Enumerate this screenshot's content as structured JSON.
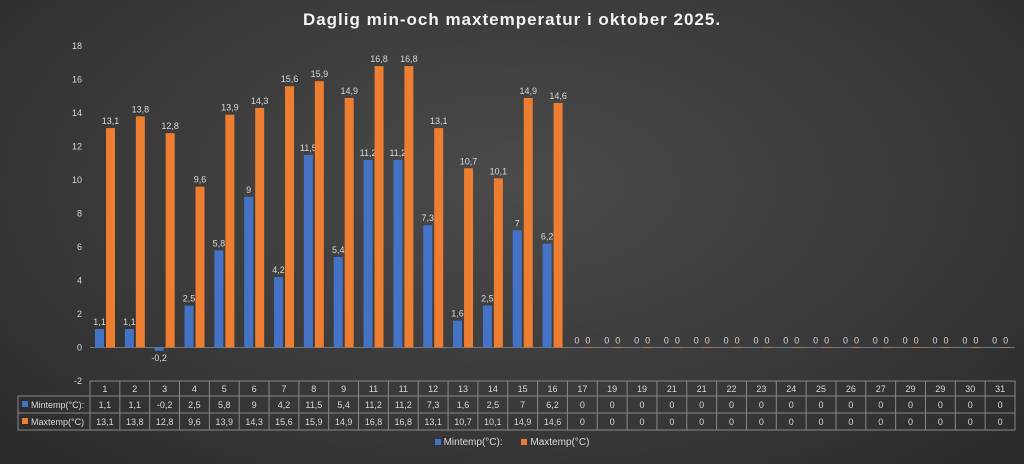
{
  "chart_data": {
    "type": "bar",
    "title": "Daglig min-och maxtemperatur i oktober 2025.",
    "categories": [
      "1",
      "2",
      "3",
      "4",
      "5",
      "6",
      "7",
      "8",
      "9",
      "11",
      "11",
      "12",
      "13",
      "14",
      "15",
      "16",
      "17",
      "19",
      "19",
      "21",
      "21",
      "22",
      "23",
      "24",
      "25",
      "26",
      "27",
      "29",
      "29",
      "30",
      "31"
    ],
    "series": [
      {
        "name": "Mintemp(°C):",
        "color": "#4472c4",
        "values": [
          1.1,
          1.1,
          -0.2,
          2.5,
          5.8,
          9,
          4.2,
          11.5,
          5.4,
          11.2,
          11.2,
          7.3,
          1.6,
          2.5,
          7,
          6.2,
          0,
          0,
          0,
          0,
          0,
          0,
          0,
          0,
          0,
          0,
          0,
          0,
          0,
          0,
          0
        ]
      },
      {
        "name": "Maxtemp(°C)",
        "color": "#ed7d31",
        "values": [
          13.1,
          13.8,
          12.8,
          9.6,
          13.9,
          14.3,
          15.6,
          15.9,
          14.9,
          16.8,
          16.8,
          13.1,
          10.7,
          10.1,
          14.9,
          14.6,
          0,
          0,
          0,
          0,
          0,
          0,
          0,
          0,
          0,
          0,
          0,
          0,
          0,
          0,
          0
        ]
      }
    ],
    "ylim": [
      -2,
      18
    ],
    "yticks": [
      -2,
      0,
      2,
      4,
      6,
      8,
      10,
      12,
      14,
      16,
      18
    ],
    "grid": false,
    "data_labels": true,
    "data_table": true,
    "legend": "bottom"
  }
}
